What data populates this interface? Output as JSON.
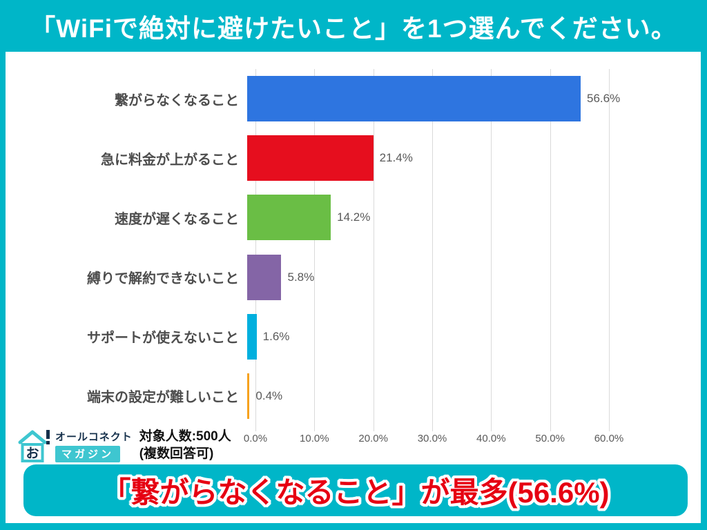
{
  "page": {
    "title": "「WiFiで絶対に避けたいこと」を1つ選んでください。",
    "accent_color": "#00B6C8",
    "panel_color": "#FFFFFF"
  },
  "chart_data": {
    "type": "bar",
    "orientation": "horizontal",
    "title": "「WiFiで絶対に避けたいこと」を1つ選んでください。",
    "categories": [
      "繋がらなくなること",
      "急に料金が上がること",
      "速度が遅くなること",
      "縛りで解約できないこと",
      "サポートが使えないこと",
      "端末の設定が難しいこと"
    ],
    "values": [
      56.6,
      21.4,
      14.2,
      5.8,
      1.6,
      0.4
    ],
    "value_labels": [
      "56.6%",
      "21.4%",
      "14.2%",
      "5.8%",
      "1.6%",
      "0.4%"
    ],
    "bar_colors": [
      "#2E75E0",
      "#E60E1E",
      "#6ABE45",
      "#8465A6",
      "#00AFDE",
      "#F7A21E"
    ],
    "xlim": [
      0,
      60
    ],
    "x_tick_labels": [
      "0.0%",
      "10.0%",
      "20.0%",
      "30.0%",
      "40.0%",
      "50.0%",
      "60.0%"
    ],
    "grid": true,
    "gridline_color": "#D9D9D9",
    "legend": "none"
  },
  "source": {
    "brand_icon_char": "お",
    "brand_icon_mark": "!",
    "brand_name": "オールコネクト",
    "brand_badge": "マガジン",
    "sample_line1": "対象人数:500人",
    "sample_line2": "(複数回答可)"
  },
  "banner": {
    "text": "「繋がらなくなること」が最多(56.6%)",
    "text_color": "#E60012"
  }
}
